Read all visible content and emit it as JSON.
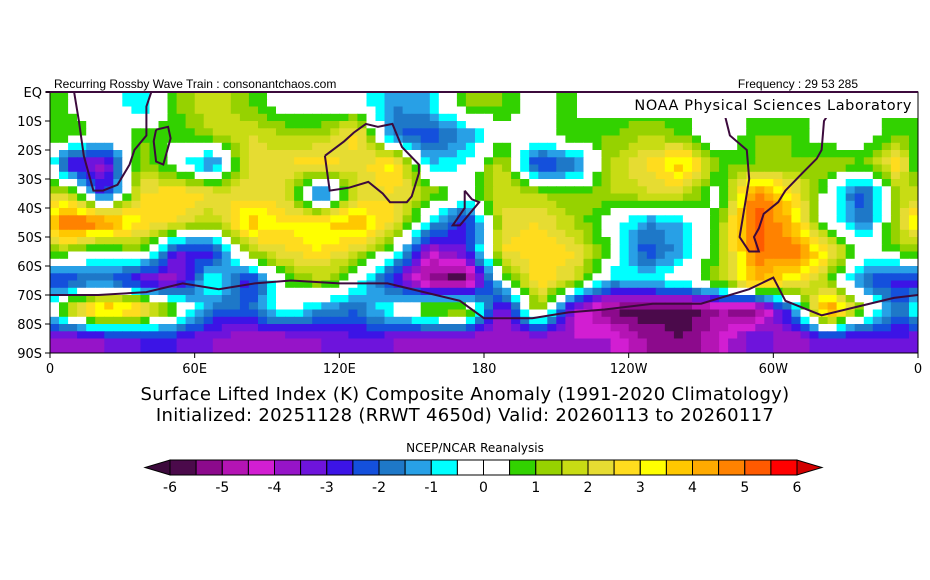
{
  "header": {
    "left_text": "Recurring Rossby Wave Train : consonantchaos.com",
    "right_text": "Frequency : 29 53 285",
    "lab_label": "NOAA Physical Sciences Laboratory"
  },
  "title": {
    "line1": "Surface Lifted Index (K) Composite Anomaly (1991-2020 Climatology)",
    "line2": "Initialized: 20251128 (RRWT 4650d) Valid: 20260113 to 20260117"
  },
  "colorbar": {
    "label": "NCEP/NCAR Reanalysis",
    "ticks": [
      "-6",
      "-5",
      "-4",
      "-3",
      "-2",
      "-1",
      "0",
      "1",
      "2",
      "3",
      "4",
      "5",
      "6"
    ],
    "tick_values": [
      -6,
      -5,
      -4,
      -3,
      -2,
      -1,
      0,
      1,
      2,
      3,
      4,
      5,
      6
    ],
    "colors": [
      "#4b0a4b",
      "#8c0a8c",
      "#b414b4",
      "#d21ed2",
      "#9614c8",
      "#6e14dc",
      "#3c14e6",
      "#1450dc",
      "#1e78c8",
      "#28a0e6",
      "#00ffff",
      "#ffffff",
      "#ffffff",
      "#32d200",
      "#96d200",
      "#c8dc14",
      "#e6dc32",
      "#ffdc1e",
      "#ffff00",
      "#ffc800",
      "#ffaa00",
      "#ff8200",
      "#ff5a00",
      "#ff0000"
    ],
    "under_color": "#3c0a3c",
    "over_color": "#d20000"
  },
  "coastline_color": "#3c0a3c",
  "chart_data": {
    "type": "heatmap",
    "y_tick_labels": [
      "EQ",
      "10S",
      "20S",
      "30S",
      "40S",
      "50S",
      "60S",
      "70S",
      "80S",
      "90S"
    ],
    "x_tick_labels": [
      "0",
      "60E",
      "120E",
      "180",
      "120W",
      "60W",
      "0"
    ],
    "lat_range": [
      0,
      -90
    ],
    "lon_range": [
      0,
      360
    ],
    "lat_centers": [
      -5,
      -15,
      -25,
      -35,
      -45,
      -55,
      -65,
      -75,
      -85
    ],
    "lon_centers": [
      7.5,
      22.5,
      37.5,
      52.5,
      67.5,
      82.5,
      97.5,
      112.5,
      127.5,
      142.5,
      157.5,
      172.5,
      187.5,
      202.5,
      217.5,
      232.5,
      247.5,
      262.5,
      277.5,
      292.5,
      307.5,
      322.5,
      337.5,
      352.5
    ],
    "values": [
      [
        0.5,
        0,
        -1,
        1,
        2,
        1,
        0,
        0,
        0,
        -1.5,
        -1,
        1,
        1,
        0,
        1,
        0.5,
        0.5,
        0.5,
        0.5,
        0.5,
        0.5,
        0.5,
        0.5,
        0.5
      ],
      [
        1,
        0,
        1,
        0.5,
        1.5,
        2,
        1.5,
        1.5,
        3,
        -2,
        -2.5,
        -1.5,
        0,
        0,
        1,
        1,
        1.5,
        1,
        -0.5,
        1,
        1,
        0,
        0,
        1
      ],
      [
        -3,
        -4,
        1.5,
        0,
        -2,
        2.5,
        2.5,
        3,
        2,
        3.5,
        -1,
        -0.5,
        2,
        -3,
        -2,
        1.5,
        2.5,
        4,
        1,
        1,
        1,
        1.5,
        1,
        3
      ],
      [
        2,
        -3,
        2.5,
        3,
        2.5,
        2,
        2,
        -2.5,
        2,
        2.5,
        1.5,
        0,
        2,
        1.5,
        1,
        1.5,
        2,
        2,
        0,
        5,
        3,
        0,
        -2.5,
        1.5
      ],
      [
        5.5,
        5,
        3,
        2.5,
        1.5,
        4,
        3,
        3.5,
        4,
        2.5,
        -1,
        -3,
        2,
        2.5,
        1.5,
        0,
        -1.5,
        -1,
        1,
        5.5,
        4,
        0,
        -2,
        2
      ],
      [
        1,
        0,
        1,
        -3,
        -3,
        1.5,
        2.5,
        3,
        2,
        0,
        -4,
        -3,
        2.5,
        3,
        2.5,
        0.5,
        -2.5,
        -1,
        1,
        5,
        5,
        3,
        0,
        1
      ],
      [
        -2.5,
        -2,
        -3.5,
        -4,
        0,
        -3,
        0.5,
        1.5,
        0,
        -3,
        -5.5,
        -6,
        0,
        3,
        2,
        -1,
        -0.5,
        0,
        1.5,
        4,
        3,
        1,
        -2,
        -3
      ],
      [
        2,
        4.5,
        3.5,
        1,
        -2,
        -2,
        0,
        -1.5,
        -2,
        0,
        1.5,
        2,
        -4,
        1.5,
        -4,
        -5.5,
        -6,
        -6,
        -5,
        -5.5,
        -2,
        5,
        1,
        -2
      ],
      [
        -4,
        -3.5,
        -3,
        -3,
        -3.5,
        -4,
        -4,
        -3.5,
        -3,
        -3.5,
        -4,
        -4,
        -4,
        -4,
        -4,
        -4,
        -5,
        -5.5,
        -4.5,
        -3,
        -4,
        -3,
        -3.5,
        -3
      ]
    ]
  }
}
